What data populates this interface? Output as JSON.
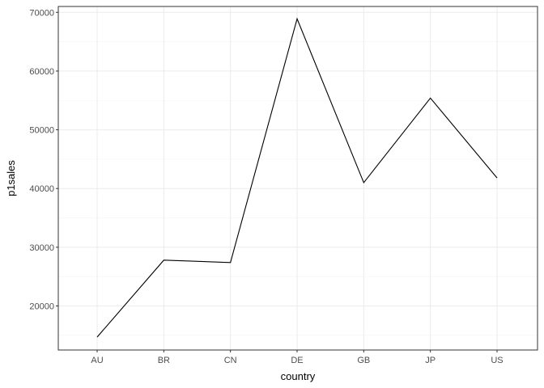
{
  "chart_data": {
    "type": "line",
    "title": "",
    "xlabel": "country",
    "ylabel": "p1sales",
    "categories": [
      "AU",
      "BR",
      "CN",
      "DE",
      "GB",
      "JP",
      "US"
    ],
    "values": [
      14700,
      27800,
      27400,
      68900,
      41000,
      55400,
      41800
    ],
    "ylim": [
      12500,
      71000
    ],
    "yticks": [
      20000,
      30000,
      40000,
      50000,
      60000,
      70000
    ],
    "ytick_labels": [
      "20000",
      "30000",
      "40000",
      "50000",
      "60000",
      "70000"
    ],
    "grid": true,
    "colors": {
      "line": "#000000",
      "grid_major": "#ebebeb",
      "grid_minor": "#f5f5f5",
      "panel_border": "#333333",
      "tick": "#333333"
    }
  }
}
